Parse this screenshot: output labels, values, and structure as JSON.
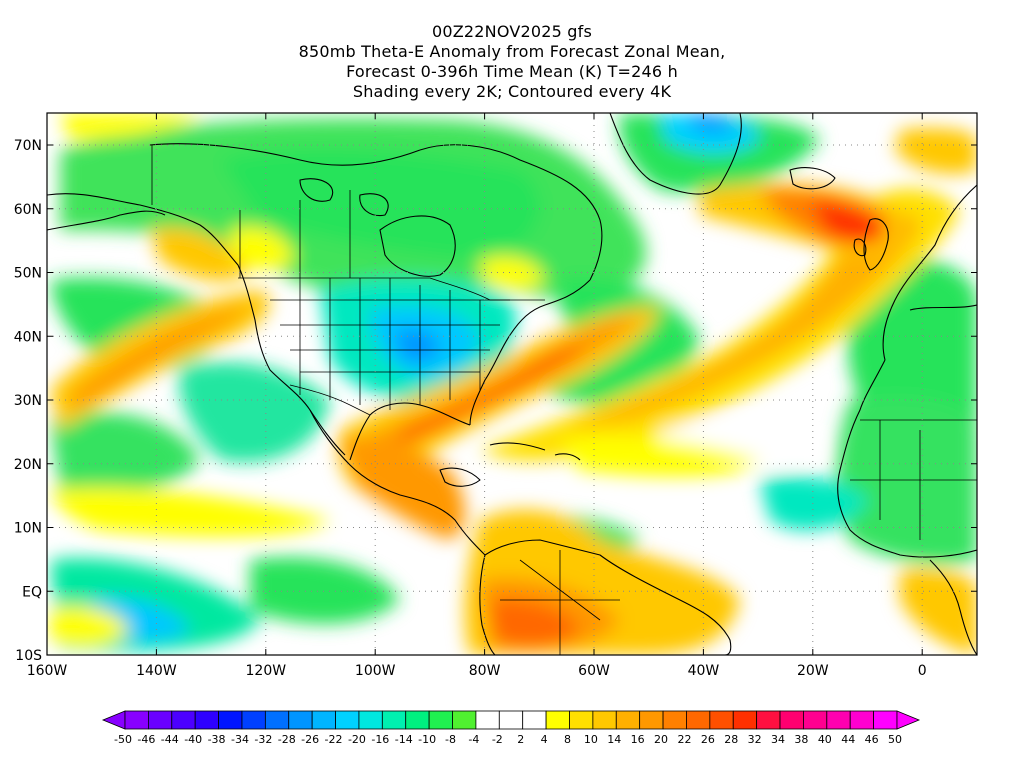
{
  "title": {
    "line1": "00Z22NOV2025 gfs",
    "line2": "850mb Theta-E Anomaly from Forecast Zonal Mean,",
    "line3": "Forecast 0-396h Time Mean (K) T=246 h",
    "line4": "Shading every 2K; Contoured every 4K"
  },
  "axes": {
    "lon_labels": [
      "160W",
      "140W",
      "120W",
      "100W",
      "80W",
      "60W",
      "40W",
      "20W",
      "0"
    ],
    "lat_labels": [
      "70N",
      "60N",
      "50N",
      "40N",
      "30N",
      "20N",
      "10N",
      "EQ",
      "10S"
    ]
  },
  "colorbar": {
    "labels": [
      "-50",
      "-46",
      "-44",
      "-40",
      "-38",
      "-34",
      "-32",
      "-28",
      "-26",
      "-22",
      "-20",
      "-16",
      "-14",
      "-10",
      "-8",
      "-4",
      "-2",
      "2",
      "4",
      "8",
      "10",
      "14",
      "16",
      "20",
      "22",
      "26",
      "28",
      "32",
      "34",
      "38",
      "40",
      "44",
      "46",
      "50"
    ],
    "colors": [
      "#8800ff",
      "#6a00ff",
      "#4c00ff",
      "#2e00ff",
      "#0015ff",
      "#0040ff",
      "#0070ff",
      "#0095ff",
      "#00b5ff",
      "#00d2ff",
      "#00e8e0",
      "#00f0b0",
      "#00f080",
      "#20f050",
      "#50f030",
      "#ffffff",
      "#ffffff",
      "#ffffff",
      "#ffff00",
      "#ffe000",
      "#ffc800",
      "#ffb000",
      "#ff9800",
      "#ff8000",
      "#ff6800",
      "#ff5000",
      "#ff3000",
      "#ff1040",
      "#ff0070",
      "#ff0090",
      "#ff00b0",
      "#ff00d0",
      "#ff00ff"
    ]
  },
  "map_colors": {
    "cool1": "#27e35a",
    "cool2": "#00e8a0",
    "cool3": "#00d2ff",
    "cool4": "#0095ff",
    "warm1": "#ffff00",
    "warm2": "#ffc800",
    "warm3": "#ff9800",
    "warm4": "#ff6800",
    "warm5": "#ff3000",
    "neutral": "#ffffff"
  }
}
